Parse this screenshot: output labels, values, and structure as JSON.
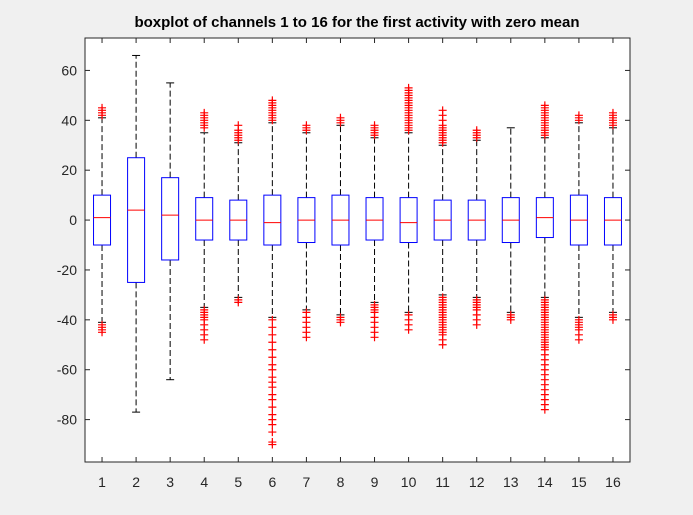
{
  "colors": {
    "figure_bg": "#f0f0f0",
    "axes_bg": "#ffffff",
    "box": "#0000ff",
    "median": "#ff0000",
    "whisker": "#000000",
    "outlier": "#ff0000",
    "axis": "#262626"
  },
  "chart_data": {
    "type": "boxplot",
    "title": "boxplot of channels 1 to 16 for the first activity with zero mean",
    "xlabel": "",
    "ylabel": "",
    "categories": [
      "1",
      "2",
      "3",
      "4",
      "5",
      "6",
      "7",
      "8",
      "9",
      "10",
      "11",
      "12",
      "13",
      "14",
      "15",
      "16"
    ],
    "ylim": [
      -97,
      73
    ],
    "yticks": [
      -80,
      -60,
      -40,
      -20,
      0,
      20,
      40,
      60
    ],
    "ytick_labels": [
      "-80",
      "-60",
      "-40",
      "-20",
      "0",
      "20",
      "40",
      "60"
    ],
    "grid": false,
    "legend": false,
    "boxes": [
      {
        "label": "1",
        "q1": -10,
        "median": 1,
        "q3": 10,
        "whisker_low": -41,
        "whisker_high": 41,
        "outliers_high": [
          42,
          43,
          44,
          45
        ],
        "outliers_low": [
          -42,
          -43,
          -44,
          -45
        ]
      },
      {
        "label": "2",
        "q1": -25,
        "median": 4,
        "q3": 25,
        "whisker_low": -77,
        "whisker_high": 66,
        "outliers_high": [],
        "outliers_low": []
      },
      {
        "label": "3",
        "q1": -16,
        "median": 2,
        "q3": 17,
        "whisker_low": -64,
        "whisker_high": 55,
        "outliers_high": [],
        "outliers_low": []
      },
      {
        "label": "4",
        "q1": -8,
        "median": 0,
        "q3": 9,
        "whisker_low": -35,
        "whisker_high": 35,
        "outliers_high": [
          37,
          38,
          39,
          40,
          41,
          42,
          43
        ],
        "outliers_low": [
          -36,
          -37,
          -38,
          -39,
          -40,
          -42,
          -44,
          -46,
          -48
        ]
      },
      {
        "label": "5",
        "q1": -8,
        "median": 0,
        "q3": 8,
        "whisker_low": -31,
        "whisker_high": 31,
        "outliers_high": [
          32,
          33,
          34,
          35,
          36,
          38
        ],
        "outliers_low": [
          -32,
          -33
        ]
      },
      {
        "label": "6",
        "q1": -10,
        "median": -1,
        "q3": 10,
        "whisker_low": -39,
        "whisker_high": 39,
        "outliers_high": [
          40,
          41,
          42,
          43,
          44,
          45,
          46,
          47,
          48
        ],
        "outliers_low": [
          -40,
          -43,
          -46,
          -49,
          -52,
          -55,
          -58,
          -60,
          -63,
          -65,
          -67,
          -70,
          -72,
          -75,
          -78,
          -80,
          -82,
          -85,
          -89,
          -90
        ]
      },
      {
        "label": "7",
        "q1": -9,
        "median": 0,
        "q3": 9,
        "whisker_low": -36,
        "whisker_high": 35,
        "outliers_high": [
          36,
          37,
          38
        ],
        "outliers_low": [
          -37,
          -39,
          -41,
          -43,
          -45,
          -47
        ]
      },
      {
        "label": "8",
        "q1": -10,
        "median": 0,
        "q3": 10,
        "whisker_low": -38,
        "whisker_high": 38,
        "outliers_high": [
          39,
          40,
          41
        ],
        "outliers_low": [
          -39,
          -40,
          -41
        ]
      },
      {
        "label": "9",
        "q1": -8,
        "median": 0,
        "q3": 9,
        "whisker_low": -33,
        "whisker_high": 33,
        "outliers_high": [
          34,
          35,
          36,
          37,
          38
        ],
        "outliers_low": [
          -34,
          -35,
          -36,
          -37,
          -39,
          -41,
          -43,
          -45,
          -47
        ]
      },
      {
        "label": "10",
        "q1": -9,
        "median": -1,
        "q3": 9,
        "whisker_low": -37,
        "whisker_high": 35,
        "outliers_high": [
          36,
          37,
          38,
          39,
          40,
          41,
          42,
          43,
          44,
          45,
          46,
          47,
          48,
          49,
          50,
          51,
          52,
          53
        ],
        "outliers_low": [
          -38,
          -40,
          -42,
          -44
        ]
      },
      {
        "label": "11",
        "q1": -8,
        "median": 0,
        "q3": 8,
        "whisker_low": -30,
        "whisker_high": 30,
        "outliers_high": [
          31,
          32,
          33,
          34,
          35,
          36,
          37,
          38,
          40,
          42,
          44
        ],
        "outliers_low": [
          -31,
          -32,
          -33,
          -34,
          -35,
          -36,
          -37,
          -38,
          -39,
          -40,
          -41,
          -42,
          -43,
          -44,
          -45,
          -46,
          -48,
          -50
        ]
      },
      {
        "label": "12",
        "q1": -8,
        "median": 0,
        "q3": 8,
        "whisker_low": -31,
        "whisker_high": 32,
        "outliers_high": [
          33,
          34,
          35,
          36
        ],
        "outliers_low": [
          -32,
          -33,
          -34,
          -35,
          -36,
          -38,
          -40,
          -42
        ]
      },
      {
        "label": "13",
        "q1": -9,
        "median": 0,
        "q3": 9,
        "whisker_low": -37,
        "whisker_high": 37,
        "outliers_high": [],
        "outliers_low": [
          -38,
          -39,
          -40
        ]
      },
      {
        "label": "14",
        "q1": -7,
        "median": 1,
        "q3": 9,
        "whisker_low": -31,
        "whisker_high": 33,
        "outliers_high": [
          34,
          35,
          36,
          37,
          38,
          39,
          40,
          41,
          42,
          43,
          44,
          45,
          46
        ],
        "outliers_low": [
          -32,
          -33,
          -34,
          -35,
          -36,
          -37,
          -38,
          -39,
          -40,
          -41,
          -42,
          -43,
          -44,
          -45,
          -46,
          -47,
          -48,
          -49,
          -50,
          -51,
          -52,
          -54,
          -56,
          -58,
          -60,
          -62,
          -64,
          -66,
          -68,
          -70,
          -72,
          -74,
          -76
        ]
      },
      {
        "label": "15",
        "q1": -10,
        "median": 0,
        "q3": 10,
        "whisker_low": -39,
        "whisker_high": 39,
        "outliers_high": [
          40,
          41,
          42
        ],
        "outliers_low": [
          -40,
          -41,
          -42,
          -43,
          -44,
          -46,
          -48
        ]
      },
      {
        "label": "16",
        "q1": -10,
        "median": 0,
        "q3": 9,
        "whisker_low": -37,
        "whisker_high": 37,
        "outliers_high": [
          38,
          39,
          40,
          41,
          42,
          43
        ],
        "outliers_low": [
          -38,
          -39,
          -40
        ]
      }
    ]
  }
}
